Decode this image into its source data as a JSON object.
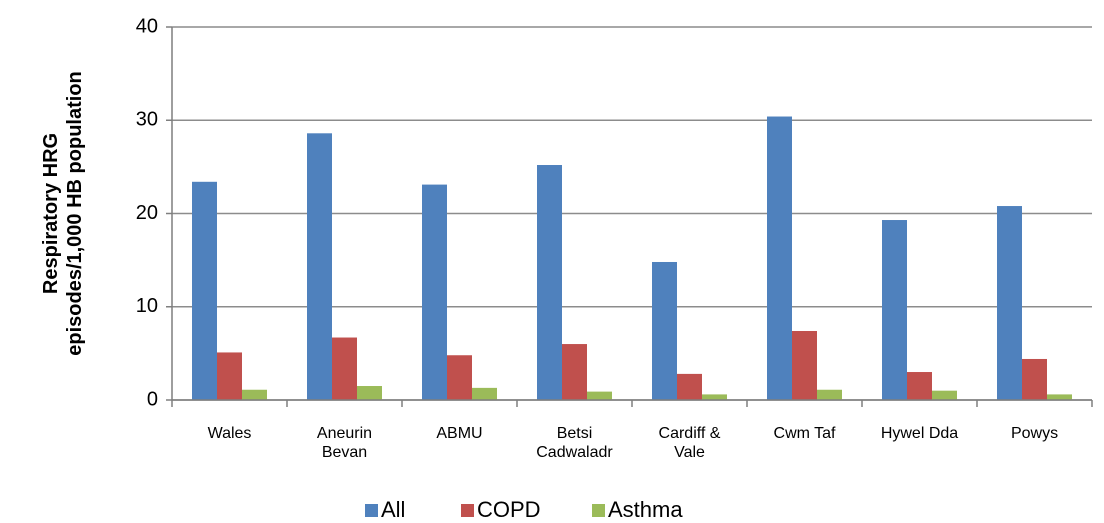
{
  "chart_data": {
    "type": "bar",
    "y_label": "Respiratory HRG\nepisodes/1,000 HB population",
    "categories": [
      "Wales",
      "Aneurin\nBevan",
      "ABMU",
      "Betsi\nCadwaladr",
      "Cardiff &\nVale",
      "Cwm Taf",
      "Hywel Dda",
      "Powys"
    ],
    "series": [
      {
        "name": "All",
        "color": "#4f81bd",
        "values": [
          23.4,
          28.6,
          23.1,
          25.2,
          14.8,
          30.4,
          19.3,
          20.8
        ]
      },
      {
        "name": "COPD",
        "color": "#c0504d",
        "values": [
          5.1,
          6.7,
          4.8,
          6.0,
          2.8,
          7.4,
          3.0,
          4.4
        ]
      },
      {
        "name": "Asthma",
        "color": "#9bbb59",
        "values": [
          1.1,
          1.5,
          1.3,
          0.9,
          0.6,
          1.1,
          1.0,
          0.6
        ]
      }
    ],
    "ylim": [
      0,
      40
    ],
    "yticks": [
      0,
      10,
      20,
      30,
      40
    ],
    "grid": true,
    "legend": "bottom"
  }
}
